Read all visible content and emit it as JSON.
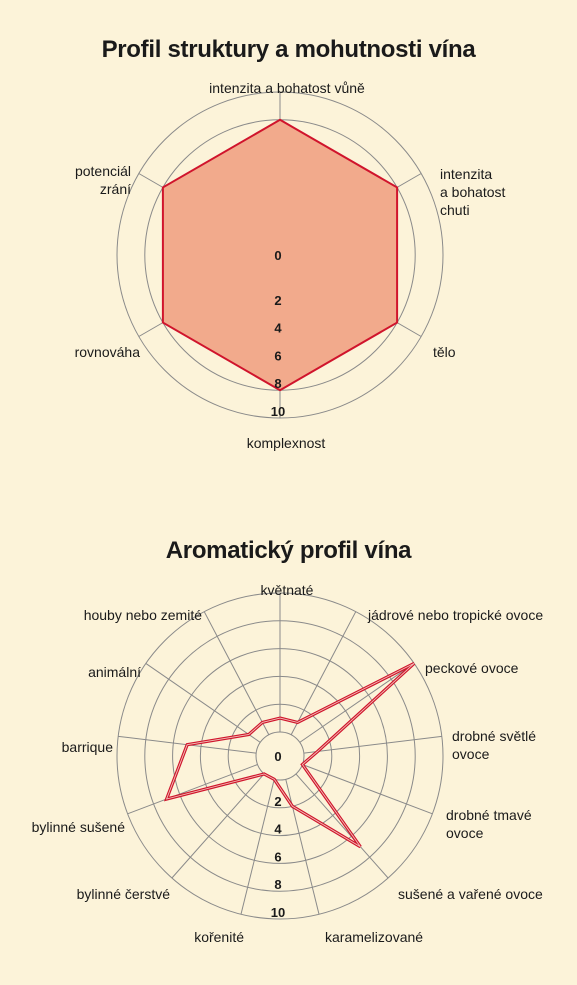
{
  "chart_data": [
    {
      "type": "radar",
      "title": "Profil struktury a mohutnosti vína",
      "axes": [
        "intenzita a bohatost vůně",
        "intenzita a bohatost chuti",
        "tělo",
        "komplexnost",
        "rovnováha",
        "potenciál zrání"
      ],
      "axis_label_lines": [
        [
          "intenzita a bohatost vůně"
        ],
        [
          "intenzita",
          "a bohatost",
          "chuti"
        ],
        [
          "tělo"
        ],
        [
          "komplexnost"
        ],
        [
          "rovnováha"
        ],
        [
          "potenciál",
          "zrání"
        ]
      ],
      "values": [
        8,
        8,
        8,
        8,
        8,
        8
      ],
      "rmax": 10,
      "ticks": [
        "0",
        "2",
        "4",
        "6",
        "8",
        "10"
      ],
      "fill_color": "#f2aa8c",
      "line_color": "#d0142c",
      "grid": true
    },
    {
      "type": "radar",
      "title": "Aromatický profil vína",
      "axes": [
        "květnaté",
        "jádrové nebo tropické ovoce",
        "peckové ovoce",
        "drobné světlé ovoce",
        "drobné tmavé ovoce",
        "sušené a vařené ovoce",
        "karamelizované",
        "kořenité",
        "bylinné čerstvé",
        "bylinné sušené",
        "barrique",
        "animální",
        "houby nebo zemité"
      ],
      "axis_label_lines": [
        [
          "květnaté"
        ],
        [
          "jádrové nebo tropické ovoce"
        ],
        [
          "peckové ovoce"
        ],
        [
          "drobné světlé",
          "ovoce"
        ],
        [
          "drobné tmavé",
          "ovoce"
        ],
        [
          "sušené a vařené ovoce"
        ],
        [
          "karamelizované"
        ],
        [
          "kořenité"
        ],
        [
          "bylinné čerstvé"
        ],
        [
          "bylinné sušené"
        ],
        [
          "barrique"
        ],
        [
          "animální"
        ],
        [
          "houby nebo zemité"
        ]
      ],
      "values": [
        1,
        1,
        10,
        1,
        0,
        7,
        2,
        0,
        0,
        7,
        5,
        1,
        1
      ],
      "rmax": 10,
      "ticks": [
        "0",
        "2",
        "4",
        "6",
        "8",
        "10"
      ],
      "line_color": "#d0142c",
      "grid": true
    }
  ],
  "colors": {
    "background": "#fcf3d9",
    "grid": "#8a8a8a"
  }
}
